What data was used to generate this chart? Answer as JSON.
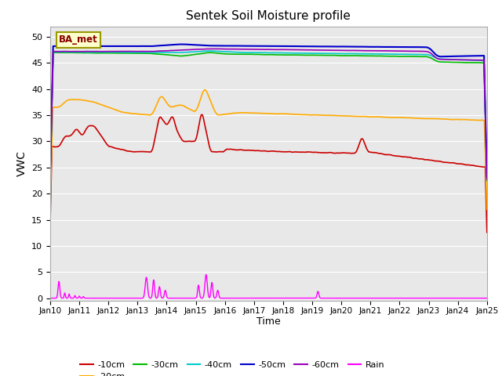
{
  "title": "Sentek Soil Moisture profile",
  "xlabel": "Time",
  "ylabel": "VWC",
  "legend_label": "BA_met",
  "ylim": [
    -0.5,
    52
  ],
  "yticks": [
    0,
    5,
    10,
    15,
    20,
    25,
    30,
    35,
    40,
    45,
    50
  ],
  "xtick_labels": [
    "Jan 10",
    "Jan 11",
    "Jan 12",
    "Jan 13",
    "Jan 14",
    "Jan 15",
    "Jan 16",
    "Jan 17",
    "Jan 18",
    "Jan 19",
    "Jan 20",
    "Jan 21",
    "Jan 22",
    "Jan 23",
    "Jan 24",
    "Jan 25"
  ],
  "colors": {
    "10cm": "#cc0000",
    "20cm": "#ffaa00",
    "30cm": "#00bb00",
    "40cm": "#00cccc",
    "50cm": "#0000cc",
    "60cm": "#9900bb",
    "rain": "#ff00ff"
  },
  "bg_color": "#e8e8e8",
  "fig_bg": "#ffffff",
  "n_points": 1500
}
